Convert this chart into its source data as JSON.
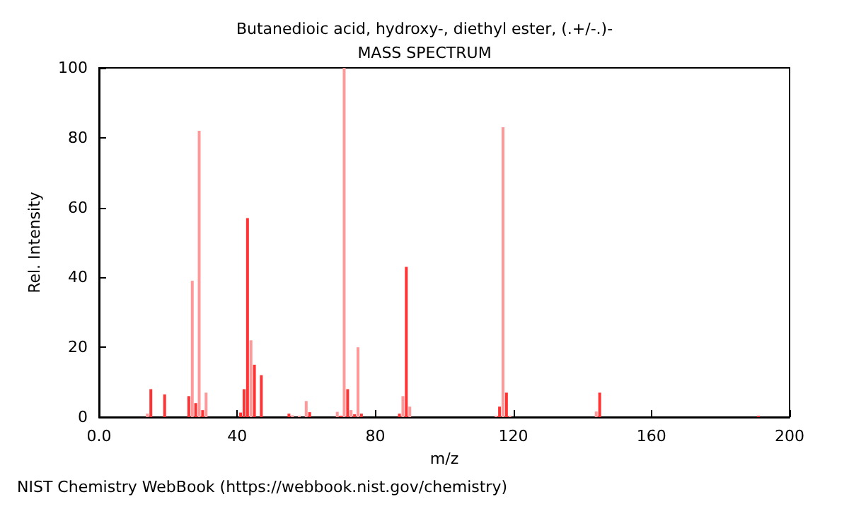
{
  "chart_data": {
    "type": "bar",
    "title": "Butanedioic acid, hydroxy-, diethyl ester, (.+/-.)-",
    "subtitle": "MASS SPECTRUM",
    "xlabel": "m/z",
    "ylabel": "Rel. Intensity",
    "annotations": [
      "NIST Chemistry WebBook (https://webbook.nist.gov/chemistry)"
    ],
    "x": [
      14,
      15,
      19,
      26,
      27,
      28,
      29,
      30,
      31,
      41,
      42,
      43,
      44,
      45,
      47,
      55,
      56,
      58,
      60,
      61,
      69,
      70,
      71,
      72,
      73,
      74,
      75,
      76,
      87,
      88,
      89,
      90,
      115,
      116,
      117,
      118,
      119,
      144,
      145,
      191
    ],
    "values": [
      1,
      8,
      6.5,
      6,
      39,
      4,
      82,
      2,
      7,
      1.3,
      8,
      57,
      22,
      15,
      12,
      1,
      0.5,
      0.4,
      4.6,
      1.4,
      1.5,
      0.4,
      100,
      8,
      2,
      0.8,
      20,
      1,
      1,
      6,
      43,
      3,
      0.4,
      3,
      83,
      7,
      0.4,
      1.6,
      7,
      0.4
    ],
    "colors": [
      "#ff9999",
      "#ff3333",
      "#ff3333",
      "#ff3333",
      "#ff9999",
      "#ff3333",
      "#ff9999",
      "#ff3333",
      "#ff9999",
      "#ff3333",
      "#ff3333",
      "#ff3333",
      "#ff9999",
      "#ff3333",
      "#ff3333",
      "#ff3333",
      "#ff9999",
      "#ff9999",
      "#ff9999",
      "#ff3333",
      "#ff9999",
      "#ff3333",
      "#ff9999",
      "#ff3333",
      "#ff9999",
      "#ff3333",
      "#ff9999",
      "#ff3333",
      "#ff3333",
      "#ff9999",
      "#ff3333",
      "#ff9999",
      "#ff9999",
      "#ff3333",
      "#ff9999",
      "#ff3333",
      "#ff9999",
      "#ff9999",
      "#ff3333",
      "#ff3333"
    ],
    "xlim": [
      0,
      200
    ],
    "xticks": [
      {
        "value": 0,
        "label": "0.0"
      },
      40,
      80,
      120,
      160,
      200
    ],
    "ylim": [
      0,
      100
    ],
    "yticks": [
      0,
      20,
      40,
      60,
      80,
      100
    ],
    "grid": false
  }
}
